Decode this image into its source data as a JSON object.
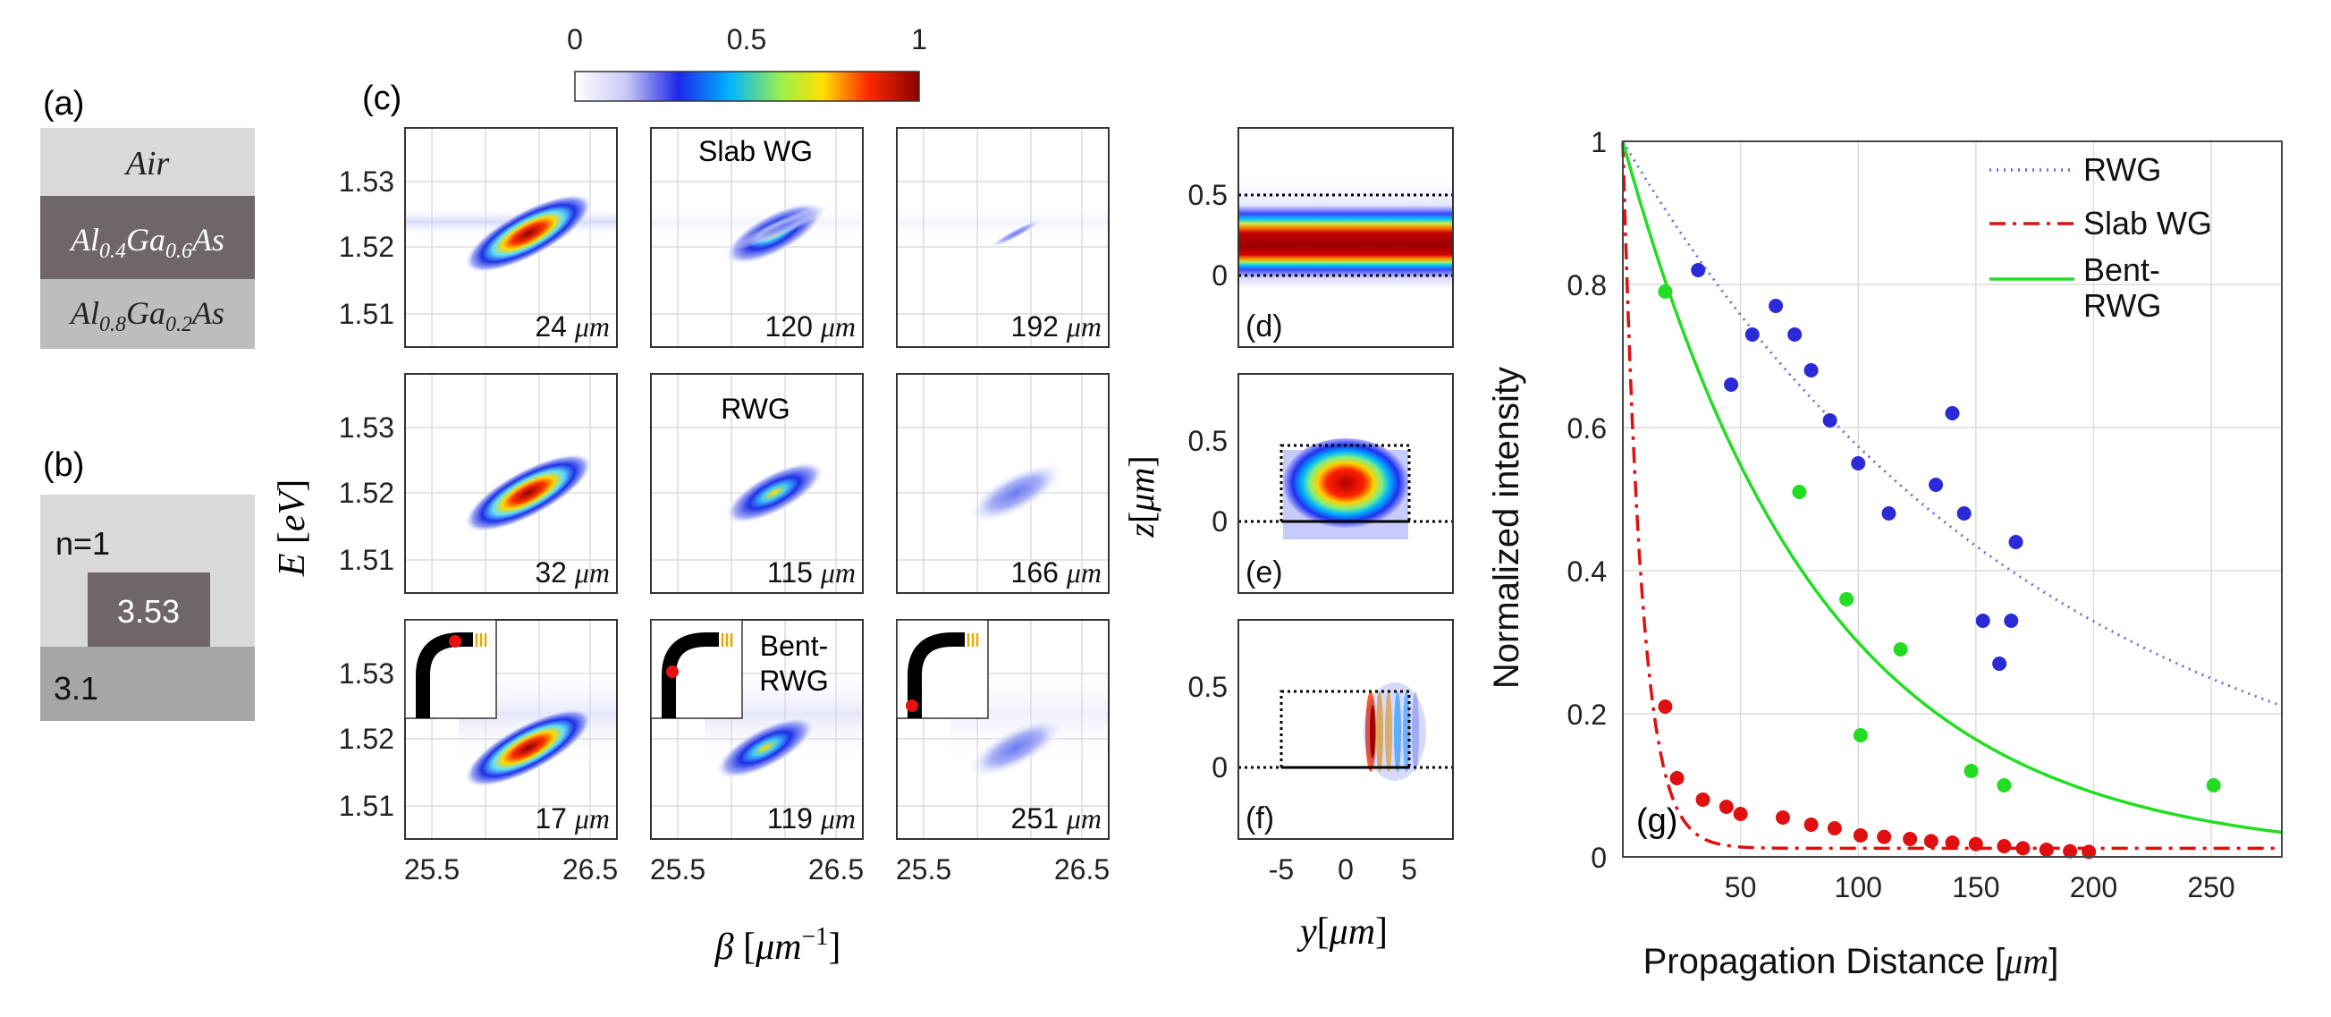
{
  "panel_labels": {
    "a": "(a)",
    "b": "(b)",
    "c": "(c)",
    "d": "(d)",
    "e": "(e)",
    "f": "(f)",
    "g": "(g)"
  },
  "layer_stack": {
    "air": "Air",
    "core": "Al0.4Ga0.6As",
    "core_parts": [
      "Al",
      "0.4",
      "Ga",
      "0.6",
      "As"
    ],
    "substrate": "Al0.8Ga0.2As",
    "substrate_parts": [
      "Al",
      "0.8",
      "Ga",
      "0.2",
      "As"
    ]
  },
  "index_profile": {
    "n_air": "n=1",
    "n_core": "3.53",
    "n_sub": "3.1"
  },
  "colorbar": {
    "min": "0",
    "mid": "0.5",
    "max": "1"
  },
  "dispersion_grid": {
    "ylabel": "E [eV]",
    "ylabel_var": "E",
    "ylabel_unit": "eV",
    "xlabel": "β [μm⁻¹]",
    "xlabel_var": "β",
    "xlabel_unit": "μm",
    "xlabel_exp": "−1",
    "yticks": [
      "1.53",
      "1.52",
      "1.51"
    ],
    "xticks": [
      "25.5",
      "26.5"
    ],
    "titles": [
      "Slab WG",
      "RWG",
      "Bent-"
    ],
    "bent_second_line": "RWG",
    "unit": "μm",
    "distances": [
      [
        "24",
        "120",
        "192"
      ],
      [
        "32",
        "115",
        "166"
      ],
      [
        "17",
        "119",
        "251"
      ]
    ]
  },
  "mode_profiles": {
    "zlabel": "z[μm]",
    "zlabel_var": "z",
    "zlabel_unit": "μm",
    "ylabel": "y[μm]",
    "ylabel_var": "y",
    "ylabel_unit": "μm",
    "zticks": [
      "0.5",
      "0"
    ],
    "yticks": [
      "-5",
      "0",
      "5"
    ]
  },
  "chart_data": {
    "type": "scatter",
    "title": "",
    "xlabel": "Propagation Distance [μm]",
    "xlabel_text": "Propagation Distance ",
    "xlabel_unit": "μm",
    "ylabel": "Normalized intensity",
    "xlim": [
      0,
      280
    ],
    "ylim": [
      0,
      1
    ],
    "xticks": [
      50,
      100,
      150,
      200,
      250
    ],
    "yticks": [
      0,
      0.2,
      0.4,
      0.6,
      0.8,
      1
    ],
    "ytick_labels": [
      "0",
      "0.2",
      "0.4",
      "0.6",
      "0.8",
      "1"
    ],
    "legend_position": "top-right",
    "series": [
      {
        "name": "RWG",
        "color": "#2a2ad8",
        "line_color": "#6b6bd6",
        "line_style": "dotted",
        "fit_decay_length": 180,
        "points": [
          [
            32,
            0.82
          ],
          [
            46,
            0.66
          ],
          [
            55,
            0.73
          ],
          [
            65,
            0.77
          ],
          [
            73,
            0.73
          ],
          [
            80,
            0.68
          ],
          [
            88,
            0.61
          ],
          [
            100,
            0.55
          ],
          [
            113,
            0.48
          ],
          [
            133,
            0.52
          ],
          [
            140,
            0.62
          ],
          [
            145,
            0.48
          ],
          [
            153,
            0.33
          ],
          [
            160,
            0.27
          ],
          [
            165,
            0.33
          ],
          [
            167,
            0.44
          ]
        ]
      },
      {
        "name": "Slab WG",
        "color": "#e01010",
        "line_color": "#e01010",
        "line_style": "dashdot",
        "fit_decay_length": 8,
        "fit_floor": 0.012,
        "points": [
          [
            18,
            0.21
          ],
          [
            23,
            0.11
          ],
          [
            34,
            0.08
          ],
          [
            44,
            0.07
          ],
          [
            50,
            0.06
          ],
          [
            68,
            0.055
          ],
          [
            80,
            0.045
          ],
          [
            90,
            0.04
          ],
          [
            101,
            0.03
          ],
          [
            111,
            0.028
          ],
          [
            122,
            0.025
          ],
          [
            131,
            0.022
          ],
          [
            140,
            0.02
          ],
          [
            150,
            0.018
          ],
          [
            162,
            0.015
          ],
          [
            170,
            0.012
          ],
          [
            180,
            0.01
          ],
          [
            190,
            0.008
          ],
          [
            198,
            0.007
          ]
        ]
      },
      {
        "name": "Bent-RWG",
        "name_lines": [
          "Bent-",
          "RWG"
        ],
        "color": "#22dd22",
        "line_color": "#22dd22",
        "line_style": "solid",
        "fit_decay_length": 83,
        "points": [
          [
            18,
            0.79
          ],
          [
            75,
            0.51
          ],
          [
            95,
            0.36
          ],
          [
            101,
            0.17
          ],
          [
            118,
            0.29
          ],
          [
            148,
            0.12
          ],
          [
            162,
            0.1
          ],
          [
            251,
            0.1
          ]
        ]
      }
    ]
  },
  "colors": {
    "layer_air": "#d9d9d9",
    "layer_core": "#6f6767",
    "layer_sub": "#bdbdbd",
    "index_sub": "#a6a6a6"
  }
}
